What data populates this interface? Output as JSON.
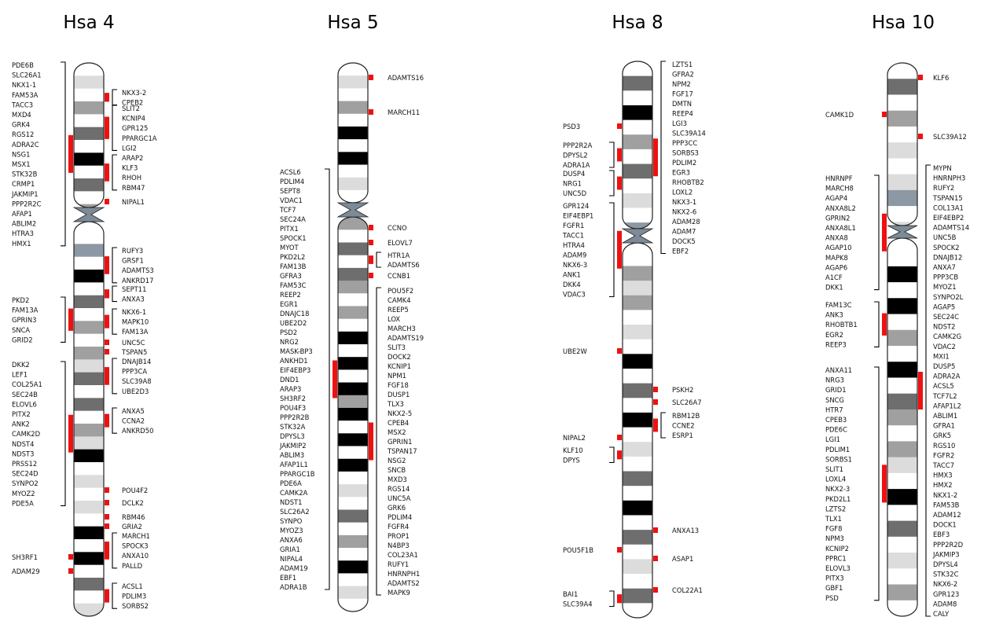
{
  "chromosomes": [
    {
      "title": "Hsa 4",
      "bands": [
        [
          "w"
        ],
        [
          "l"
        ],
        [
          "w"
        ],
        [
          "g"
        ],
        [
          "w"
        ],
        [
          "d"
        ],
        [
          "w"
        ],
        [
          "b"
        ],
        [
          "w"
        ],
        [
          "d"
        ],
        [
          "w"
        ],
        [
          "g"
        ],
        [
          "w"
        ],
        [
          "c"
        ],
        [
          "w"
        ],
        [
          "b"
        ],
        [
          "w"
        ],
        [
          "d"
        ],
        [
          "w"
        ],
        [
          "g"
        ],
        [
          "w"
        ],
        [
          "g"
        ],
        [
          "l"
        ],
        [
          "d"
        ],
        [
          "w"
        ],
        [
          "d"
        ],
        [
          "w"
        ],
        [
          "g"
        ],
        [
          "l"
        ],
        [
          "b"
        ],
        [
          "w"
        ],
        [
          "l"
        ],
        [
          "w"
        ],
        [
          "l"
        ],
        [
          "w"
        ],
        [
          "b"
        ],
        [
          "w"
        ],
        [
          "b"
        ],
        [
          "w"
        ],
        [
          "d"
        ],
        [
          "w"
        ],
        [
          "l"
        ]
      ],
      "left_groups": [
        {
          "genes": [
            "PDE6B",
            "SLC26A1",
            "NKX1-1",
            "FAM53A",
            "TACC3",
            "MXD4",
            "GRK4",
            "RGS12",
            "ADRA2C",
            "NSG1",
            "MSX1",
            "STK32B",
            "CRMP1",
            "JAKMIP1",
            "PPP2R2C",
            "AFAP1",
            "ABLIM2",
            "HTRA3",
            "HMX1"
          ],
          "bracket": true
        },
        {
          "genes": [
            "PKD2",
            "FAM13A",
            "GPRIN3",
            "SNCA",
            "GRID2"
          ],
          "bracket": true
        },
        {
          "genes": [
            "DKK2",
            "LEF1",
            "COL25A1",
            "SEC24B",
            "ELOVL6",
            "PITX2",
            "ANK2",
            "CAMK2D",
            "NDST4",
            "NDST3",
            "PRSS12",
            "SEC24D",
            "SYNPO2",
            "MYOZ2",
            "PDE5A"
          ],
          "bracket": true
        },
        {
          "genes": [
            "SH3RF1"
          ],
          "bracket": false
        },
        {
          "genes": [
            "ADAM29"
          ],
          "bracket": false
        }
      ],
      "right_groups": [
        {
          "genes": [
            "NKX3-2",
            "CPEB2"
          ],
          "bracket": true
        },
        {
          "genes": [
            "SLIT2",
            "KCNIP4",
            "GPR125",
            "PPARGC1A",
            "LGI2"
          ],
          "bracket": true
        },
        {
          "genes": [
            "ARAP2",
            "KLF3",
            "RHOH",
            "RBM47"
          ],
          "bracket": true
        },
        {
          "genes": [
            "NIPAL1"
          ],
          "bracket": false
        },
        {
          "genes": [
            "RUFY3",
            "GRSF1",
            "ADAMTS3",
            "ANKRD17"
          ],
          "bracket": true
        },
        {
          "genes": [
            "SEPT11",
            "ANXA3"
          ],
          "bracket": true
        },
        {
          "genes": [
            "NKX6-1",
            "MAPK10",
            "FAM13A"
          ],
          "bracket": true
        },
        {
          "genes": [
            "UNC5C"
          ],
          "bracket": false
        },
        {
          "genes": [
            "TSPAN5"
          ],
          "bracket": false
        },
        {
          "genes": [
            "DNAJB14",
            "PPP3CA",
            "SLC39A8",
            "UBE2D3"
          ],
          "bracket": true
        },
        {
          "genes": [
            "ANXA5",
            "CCNA2",
            "ANKRD50"
          ],
          "bracket": true
        },
        {
          "genes": [
            "POU4F2"
          ],
          "bracket": false
        },
        {
          "genes": [
            "DCLK2"
          ],
          "bracket": false
        },
        {
          "genes": [
            "RBM46"
          ],
          "bracket": false
        },
        {
          "genes": [
            "GRIA2"
          ],
          "bracket": false
        },
        {
          "genes": [
            "MARCH1",
            "SPOCK3",
            "ANXA10",
            "PALLD"
          ],
          "bracket": true
        },
        {
          "genes": [
            "ACSL1",
            "PDLIM3",
            "SORBS2"
          ],
          "bracket": true
        }
      ]
    },
    {
      "title": "Hsa 5",
      "bands": [
        [
          "w"
        ],
        [
          "l"
        ],
        [
          "w"
        ],
        [
          "g"
        ],
        [
          "w"
        ],
        [
          "b"
        ],
        [
          "w"
        ],
        [
          "b"
        ],
        [
          "w"
        ],
        [
          "l"
        ],
        [
          "w"
        ],
        [
          "g"
        ],
        [
          "w"
        ],
        [
          "d"
        ],
        [
          "w"
        ],
        [
          "d"
        ],
        [
          "g"
        ],
        [
          "w"
        ],
        [
          "g"
        ],
        [
          "w"
        ],
        [
          "b"
        ],
        [
          "w"
        ],
        [
          "b"
        ],
        [
          "w"
        ],
        [
          "b"
        ],
        [
          "g"
        ],
        [
          "b"
        ],
        [
          "w"
        ],
        [
          "b"
        ],
        [
          "w"
        ],
        [
          "b"
        ],
        [
          "w"
        ],
        [
          "l"
        ],
        [
          "w"
        ],
        [
          "d"
        ],
        [
          "w"
        ],
        [
          "g"
        ],
        [
          "w"
        ],
        [
          "b"
        ],
        [
          "w"
        ],
        [
          "l"
        ],
        [
          "w"
        ]
      ],
      "left_groups": [
        {
          "genes": [
            "ACSL6",
            "PDLIM4",
            "SEPT8",
            "VDAC1",
            "TCF7",
            "SEC24A",
            "PITX1",
            "SPOCK1",
            "MYOT",
            "PKD2L2",
            "FAM13B",
            "GFRA3",
            "FAM53C",
            "REEP2",
            "EGR1",
            "DNAJC18",
            "UBE2D2",
            "PSD2",
            "NRG2",
            "MASK-BP3",
            "ANKHD1",
            "EIF4EBP3",
            "DND1",
            "ARAP3",
            "SH3RF2",
            "POU4F3",
            "PPP2R2B",
            "STK32A",
            "DPYSL3",
            "JAKMIP2",
            "ABLIM3",
            "AFAP1L1",
            "PPARGC1B",
            "PDE6A",
            "CAMK2A",
            "NDST1",
            "SLC26A2",
            "SYNPO",
            "MYOZ3",
            "ANXA6",
            "GRIA1",
            "NIPAL4",
            "ADAM19",
            "EBF1",
            "ADRA1B"
          ],
          "bracket": true
        }
      ],
      "right_groups": [
        {
          "genes": [
            "ADAMTS16"
          ],
          "bracket": false
        },
        {
          "genes": [
            "MARCH11"
          ],
          "bracket": false
        },
        {
          "genes": [
            "CCNO"
          ],
          "bracket": false
        },
        {
          "genes": [
            "ELOVL7"
          ],
          "bracket": false
        },
        {
          "genes": [
            "HTR1A",
            "ADAMTS6"
          ],
          "bracket": true
        },
        {
          "genes": [
            "CCNB1"
          ],
          "bracket": false
        },
        {
          "genes": [
            "POU5F2",
            "CAMK4",
            "REEP5",
            "LOX",
            "MARCH3",
            "ADAMTS19",
            "SLIT3",
            "DOCK2",
            "KCNIP1",
            "NPM1",
            "FGF18",
            "DUSP1",
            "TLX3",
            "NKX2-5",
            "CPEB4",
            "MSX2",
            "GPRIN1",
            "TSPAN17",
            "NSG2",
            "SNCB",
            "MXD3",
            "RGS14",
            "UNC5A",
            "GRK6",
            "PDLIM4",
            "FGFR4",
            "PROP1",
            "N4BP3",
            "COL23A1",
            "RUFY1",
            "HNRNPH1",
            "ADAMTS2",
            "MAPK9"
          ],
          "bracket": true
        }
      ]
    },
    {
      "title": "Hsa 8",
      "bands": [
        [
          "w"
        ],
        [
          "d"
        ],
        [
          "w"
        ],
        [
          "b"
        ],
        [
          "w"
        ],
        [
          "g"
        ],
        [
          "w"
        ],
        [
          "d"
        ],
        [
          "w"
        ],
        [
          "l"
        ],
        [
          "w"
        ],
        [
          "c"
        ],
        [
          "w"
        ],
        [
          "g"
        ],
        [
          "l"
        ],
        [
          "g"
        ],
        [
          "w"
        ],
        [
          "l"
        ],
        [
          "w"
        ],
        [
          "b"
        ],
        [
          "w"
        ],
        [
          "d"
        ],
        [
          "w"
        ],
        [
          "b"
        ],
        [
          "w"
        ],
        [
          "l"
        ],
        [
          "w"
        ],
        [
          "d"
        ],
        [
          "w"
        ],
        [
          "b"
        ],
        [
          "w"
        ],
        [
          "d"
        ],
        [
          "w"
        ],
        [
          "l"
        ],
        [
          "w"
        ],
        [
          "d"
        ],
        [
          "w"
        ]
      ],
      "left_groups": [
        {
          "genes": [
            "PSD3"
          ],
          "bracket": false
        },
        {
          "genes": [
            "PPP2R2A",
            "DPYSL2",
            "ADRA1A"
          ],
          "bracket": true
        },
        {
          "genes": [
            "DUSP4",
            "NRG1",
            "UNC5D"
          ],
          "bracket": true
        },
        {
          "genes": [
            "GPR124",
            "EIF4EBP1",
            "FGFR1",
            "TACC1",
            "HTRA4",
            "ADAM9",
            "NKX6-3",
            "ANK1",
            "DKK4",
            "VDAC3"
          ],
          "bracket": true
        },
        {
          "genes": [
            "UBE2W"
          ],
          "bracket": false
        },
        {
          "genes": [
            "NIPAL2"
          ],
          "bracket": false
        },
        {
          "genes": [
            "KLF10",
            "DPYS"
          ],
          "bracket": true
        },
        {
          "genes": [
            "POU5F1B"
          ],
          "bracket": false
        },
        {
          "genes": [
            "BAI1",
            "SLC39A4"
          ],
          "bracket": true
        }
      ],
      "right_groups": [
        {
          "genes": [
            "LZTS1",
            "GFRA2",
            "NPM2",
            "FGF17",
            "DMTN",
            "REEP4",
            "LGI3",
            "SLC39A14",
            "PPP3CC",
            "SORBS3",
            "PDLIM2",
            "EGR3",
            "RHOBTB2",
            "LOXL2",
            "NKX3-1",
            "NKX2-6",
            "ADAM28",
            "ADAM7",
            "DOCK5",
            "EBF2"
          ],
          "bracket": true
        },
        {
          "genes": [
            "PSKH2"
          ],
          "bracket": false
        },
        {
          "genes": [
            "SLC26A7"
          ],
          "bracket": false
        },
        {
          "genes": [
            "RBM12B",
            "CCNE2",
            "ESRP1"
          ],
          "bracket": true
        },
        {
          "genes": [
            "ANXA13"
          ],
          "bracket": false
        },
        {
          "genes": [
            "ASAP1"
          ],
          "bracket": false
        },
        {
          "genes": [
            "COL22A1"
          ],
          "bracket": false
        }
      ]
    },
    {
      "title": "Hsa 10",
      "bands": [
        [
          "w"
        ],
        [
          "d"
        ],
        [
          "w"
        ],
        [
          "g"
        ],
        [
          "w"
        ],
        [
          "l"
        ],
        [
          "w"
        ],
        [
          "l"
        ],
        [
          "c"
        ],
        [
          "w"
        ],
        [
          "l"
        ],
        [
          "w"
        ],
        [
          "b"
        ],
        [
          "w"
        ],
        [
          "b"
        ],
        [
          "w"
        ],
        [
          "g"
        ],
        [
          "w"
        ],
        [
          "b"
        ],
        [
          "w"
        ],
        [
          "d"
        ],
        [
          "g"
        ],
        [
          "w"
        ],
        [
          "g"
        ],
        [
          "l"
        ],
        [
          "w"
        ],
        [
          "b"
        ],
        [
          "w"
        ],
        [
          "d"
        ],
        [
          "w"
        ],
        [
          "l"
        ],
        [
          "w"
        ],
        [
          "g"
        ],
        [
          "w"
        ]
      ],
      "left_groups": [
        {
          "genes": [
            "CAMK1D"
          ],
          "bracket": false
        },
        {
          "genes": [
            "HNRNPF",
            "MARCH8",
            "AGAP4",
            "ANXA8L2",
            "GPRIN2",
            "ANXA8L1",
            "ANXA8",
            "AGAP10",
            "MAPK8",
            "AGAP6",
            "A1CF",
            "DKK1"
          ],
          "bracket": true
        },
        {
          "genes": [
            "FAM13C",
            "ANK3",
            "RHOBTB1",
            "EGR2",
            "REEP3"
          ],
          "bracket": true
        },
        {
          "genes": [
            "ANXA11",
            "NRG3",
            "GRID1",
            "SNCG",
            "HTR7",
            "CPEB3",
            "PDE6C",
            "LGI1",
            "PDLIM1",
            "SORBS1",
            "SLIT1",
            "LOXL4",
            "NKX2-3",
            "PKD2L1",
            "LZTS2",
            "TLX1",
            "FGF8",
            "NPM3",
            "KCNIP2",
            "PPRC1",
            "ELOVL3",
            "PITX3",
            "GBF1",
            "PSD"
          ],
          "bracket": true
        }
      ],
      "right_groups": [
        {
          "genes": [
            "KLF6"
          ],
          "bracket": false
        },
        {
          "genes": [
            "SLC39A12"
          ],
          "bracket": false
        },
        {
          "genes": [
            "MYPN",
            "HNRNPH3",
            "RUFY2",
            "TSPAN15",
            "COL13A1",
            "EIF4EBP2",
            "ADAMTS14",
            "UNC5B",
            "SPOCK2",
            "DNAJB12",
            "ANXA7",
            "PPP3CB",
            "MYOZ1",
            "SYNPO2L",
            "AGAP5",
            "SEC24C",
            "NDST2",
            "CAMK2G",
            "VDAC2",
            "MXI1",
            "DUSP5",
            "ADRA2A",
            "ACSL5",
            "TCF7L2",
            "AFAP1L2",
            "ABLIM1",
            "GFRA1",
            "GRK5",
            "RGS10",
            "FGFR2",
            "TACC7",
            "HMX3",
            "HMX2",
            "NKX1-2",
            "FAM53B",
            "ADAM12",
            "DOCK1",
            "EBF3",
            "PPP2R2D",
            "JAKMIP3",
            "DPYSL4",
            "STK32C",
            "NKX6-2",
            "GPR123",
            "ADAM8",
            "CALY"
          ],
          "bracket": true
        }
      ]
    }
  ],
  "band_colors": {
    "w": "#ffffff",
    "l": "#dcdcdc",
    "g": "#a0a0a0",
    "d": "#6e6e6e",
    "b": "#000000",
    "c": "#8c98a4"
  },
  "marker_color": "#ee1111"
}
